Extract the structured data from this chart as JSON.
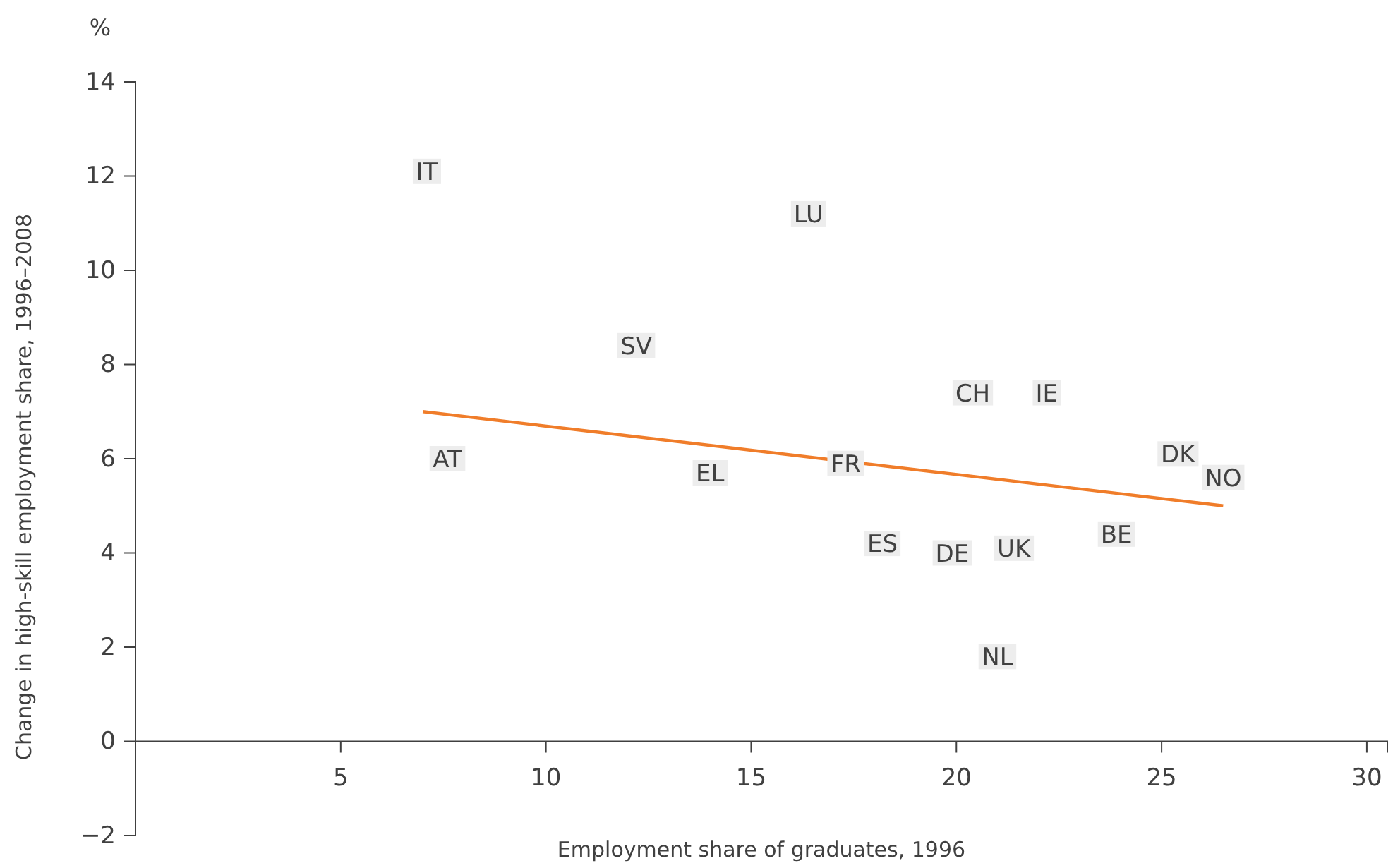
{
  "chart_data": {
    "type": "scatter",
    "xlabel": "Employment share of graduates, 1996",
    "ylabel": "Change in high-skill employment share, 1996–2008",
    "annotations": [
      "%"
    ],
    "xlim": [
      0,
      30.5
    ],
    "ylim": [
      -2,
      14
    ],
    "xticks": [
      5,
      10,
      15,
      20,
      25,
      30
    ],
    "yticks": [
      {
        "value": -2,
        "label": "−2"
      },
      0,
      2,
      4,
      6,
      8,
      10,
      12,
      14
    ],
    "grid": false,
    "legend": false,
    "series": [
      {
        "type": "scatter",
        "marker": "square",
        "color": "#ededed",
        "x": [
          7.1,
          16.4,
          12.2,
          20.4,
          22.2,
          7.6,
          14.0,
          17.3,
          25.4,
          26.5,
          18.2,
          19.9,
          21.4,
          23.9,
          21.0
        ],
        "values": [
          12.1,
          11.2,
          8.4,
          7.4,
          7.4,
          6.0,
          5.7,
          5.9,
          6.1,
          5.6,
          4.2,
          4.0,
          4.1,
          4.4,
          1.8
        ],
        "value_labels": [
          "IT",
          "LU",
          "SV",
          "CH",
          "IE",
          "AT",
          "EL",
          "FR",
          "DK",
          "NO",
          "ES",
          "DE",
          "UK",
          "BE",
          "NL"
        ]
      },
      {
        "type": "line",
        "color": "#f07d2a",
        "x": [
          7.0,
          26.5
        ],
        "values": [
          7.0,
          5.0
        ]
      }
    ]
  }
}
